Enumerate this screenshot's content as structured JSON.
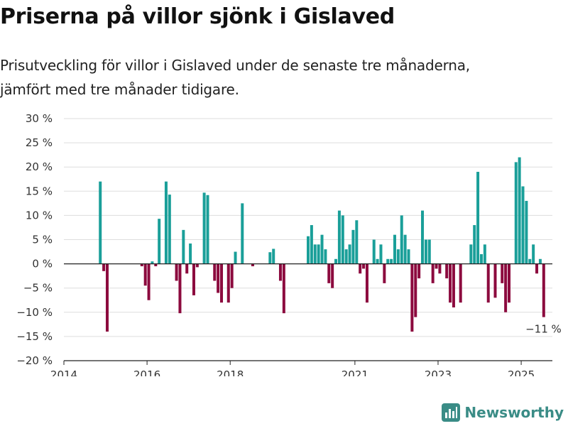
{
  "title": "Priserna på villor sjönk i Gislaved",
  "subtitle": [
    "Prisutveckling för villor i Gislaved under de senaste tre månaderna,",
    "jämfört med tre månader tidigare."
  ],
  "brand": "Newsworthy",
  "colors": {
    "positive": "#1a9f99",
    "negative": "#8c0a3e",
    "logo": "#3a8c86"
  },
  "chart_data": {
    "type": "bar",
    "x_start": "2014-01",
    "x_range": [
      "2014-01",
      "2025-10"
    ],
    "ylim": [
      -20,
      30
    ],
    "y_ticks": [
      -20,
      -15,
      -10,
      -5,
      0,
      5,
      10,
      15,
      20,
      25,
      30
    ],
    "y_tick_labels": [
      "−20 %",
      "−15 %",
      "−10 %",
      "−5 %",
      "0 %",
      "5 %",
      "10 %",
      "15 %",
      "20 %",
      "25 %",
      "30 %"
    ],
    "x_ticks": [
      "2014-01",
      "2016-01",
      "2018-01",
      "2021-01",
      "2023-01",
      "2025-01"
    ],
    "x_tick_labels": [
      "2014",
      "2016",
      "2018",
      "2021",
      "2023",
      "2025"
    ],
    "end_label": "−11 %",
    "values": [
      null,
      null,
      null,
      null,
      null,
      null,
      null,
      null,
      null,
      null,
      17,
      -1.5,
      -14,
      null,
      null,
      null,
      null,
      null,
      null,
      null,
      null,
      null,
      -0.5,
      -4.5,
      -7.5,
      0.5,
      -0.5,
      9.3,
      null,
      17,
      14.3,
      null,
      -3.5,
      -10.2,
      7,
      -2,
      4.2,
      -6.5,
      -0.7,
      null,
      14.7,
      14.2,
      null,
      -3.5,
      -6,
      -8,
      null,
      -8,
      -5,
      2.5,
      null,
      12.5,
      null,
      null,
      -0.5,
      null,
      null,
      null,
      null,
      2.4,
      3.1,
      null,
      -3.5,
      -10.2,
      null,
      null,
      null,
      null,
      null,
      null,
      5.7,
      8,
      4,
      4,
      6,
      3,
      -4,
      -5,
      1,
      11,
      10,
      3,
      4,
      7,
      9,
      -2,
      -1,
      -8,
      null,
      5,
      1,
      4,
      -4,
      1,
      1,
      6,
      3,
      10,
      6,
      3,
      -14,
      -11,
      -3,
      11,
      5,
      5,
      -4,
      -1,
      -2,
      null,
      -3,
      -8,
      -9,
      null,
      -8,
      null,
      null,
      4,
      8,
      19,
      2,
      4,
      -8,
      null,
      -7,
      null,
      -4,
      -10,
      -8,
      null,
      21,
      22,
      16,
      13,
      1,
      4,
      -2,
      1,
      -11
    ]
  }
}
